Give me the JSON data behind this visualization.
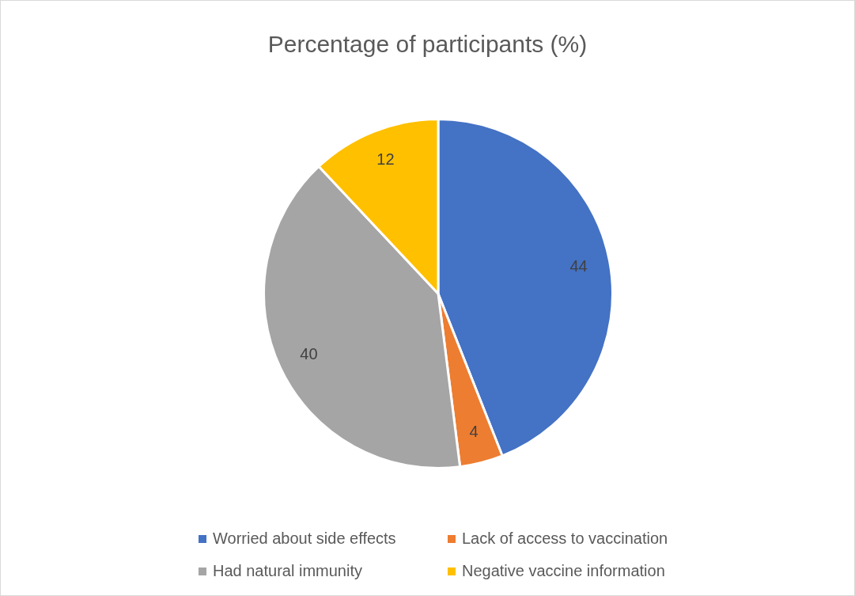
{
  "chart_data": {
    "type": "pie",
    "title": "Percentage of participants (%)",
    "categories": [
      "Worried about side effects",
      "Lack of access to vaccination",
      "Had natural immunity",
      "Negative vaccine information"
    ],
    "values": [
      44,
      4,
      40,
      12
    ],
    "colors": [
      "#4472c4",
      "#ed7d31",
      "#a5a5a5",
      "#ffc000"
    ],
    "data_labels": true,
    "legend": "bottom"
  }
}
